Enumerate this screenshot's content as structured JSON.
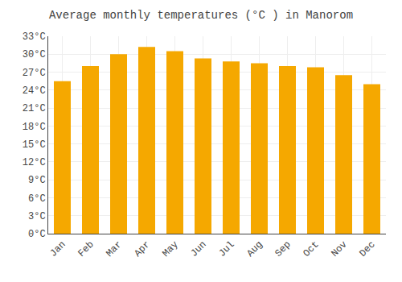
{
  "chart_data": {
    "type": "bar",
    "title": "Average monthly temperatures (°C ) in Manorom",
    "categories": [
      "Jan",
      "Feb",
      "Mar",
      "Apr",
      "May",
      "Jun",
      "Jul",
      "Aug",
      "Sep",
      "Oct",
      "Nov",
      "Dec"
    ],
    "values": [
      25.5,
      28.0,
      30.0,
      31.2,
      30.5,
      29.3,
      28.8,
      28.5,
      28.0,
      27.8,
      26.5,
      25.0
    ],
    "color": "#F5A800",
    "ylim": [
      0,
      33
    ],
    "yticks": [
      {
        "value": 0,
        "label": "0°C"
      },
      {
        "value": 3,
        "label": "3°C"
      },
      {
        "value": 6,
        "label": "6°C"
      },
      {
        "value": 9,
        "label": "9°C"
      },
      {
        "value": 12,
        "label": "12°C"
      },
      {
        "value": 15,
        "label": "15°C"
      },
      {
        "value": 18,
        "label": "18°C"
      },
      {
        "value": 21,
        "label": "21°C"
      },
      {
        "value": 24,
        "label": "24°C"
      },
      {
        "value": 27,
        "label": "27°C"
      },
      {
        "value": 30,
        "label": "30°C"
      },
      {
        "value": 33,
        "label": "33°C"
      }
    ],
    "grid": true
  }
}
